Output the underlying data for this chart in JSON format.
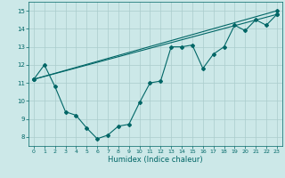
{
  "xlabel": "Humidex (Indice chaleur)",
  "bg_color": "#cce8e8",
  "grid_color": "#aacccc",
  "line_color": "#006666",
  "xlim": [
    -0.5,
    23.5
  ],
  "ylim": [
    7.5,
    15.5
  ],
  "xticks": [
    0,
    1,
    2,
    3,
    4,
    5,
    6,
    7,
    8,
    9,
    10,
    11,
    12,
    13,
    14,
    15,
    16,
    17,
    18,
    19,
    20,
    21,
    22,
    23
  ],
  "yticks": [
    8,
    9,
    10,
    11,
    12,
    13,
    14,
    15
  ],
  "series1_x": [
    0,
    1,
    2,
    3,
    4,
    5,
    6,
    7,
    8,
    9,
    10,
    11,
    12,
    13,
    14,
    15,
    16,
    17,
    18,
    19,
    20,
    21,
    22,
    23
  ],
  "series1_y": [
    11.2,
    12.0,
    10.8,
    9.4,
    9.2,
    8.5,
    7.9,
    8.1,
    8.6,
    8.7,
    9.9,
    11.0,
    11.1,
    13.0,
    13.0,
    13.1,
    11.8,
    12.6,
    13.0,
    14.2,
    13.9,
    14.5,
    14.2,
    14.8
  ],
  "series2_x": [
    0,
    23
  ],
  "series2_y": [
    11.2,
    14.8
  ],
  "series3_x": [
    0,
    23
  ],
  "series3_y": [
    11.2,
    15.0
  ]
}
